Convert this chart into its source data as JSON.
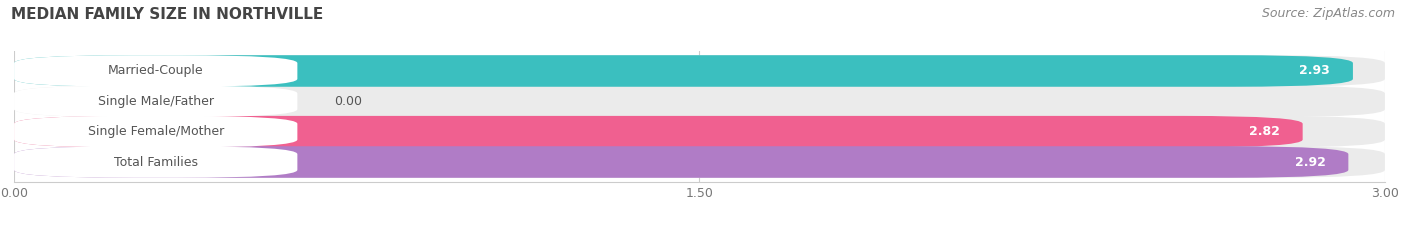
{
  "title": "MEDIAN FAMILY SIZE IN NORTHVILLE",
  "source": "Source: ZipAtlas.com",
  "categories": [
    "Married-Couple",
    "Single Male/Father",
    "Single Female/Mother",
    "Total Families"
  ],
  "values": [
    2.93,
    0.0,
    2.82,
    2.92
  ],
  "bar_colors": [
    "#3bbfbf",
    "#aab4d4",
    "#f06090",
    "#b07cc6"
  ],
  "bar_bg_color": "#ebebeb",
  "xlim": [
    0,
    3.0
  ],
  "xticks": [
    0.0,
    1.5,
    3.0
  ],
  "xtick_labels": [
    "0.00",
    "1.50",
    "3.00"
  ],
  "title_fontsize": 11,
  "source_fontsize": 9,
  "label_fontsize": 9,
  "value_fontsize": 9,
  "background_color": "#ffffff",
  "bar_height": 0.52,
  "label_pill_color": "#ffffff",
  "label_text_color": "#555555",
  "value_text_color": "#ffffff"
}
